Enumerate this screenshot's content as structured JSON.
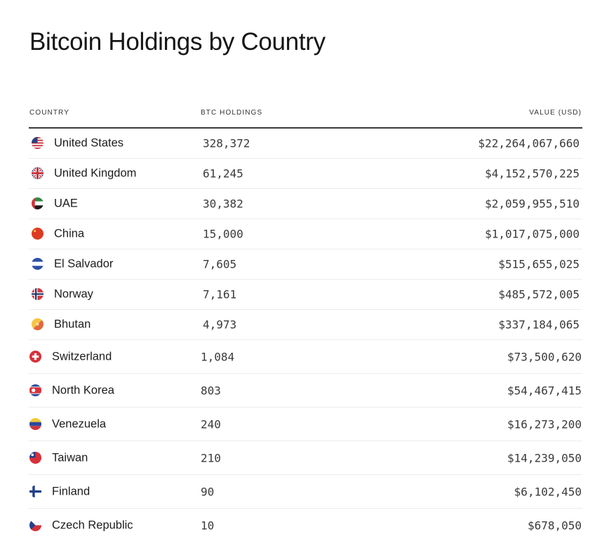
{
  "title": "Bitcoin Holdings by Country",
  "columns": {
    "country": "COUNTRY",
    "btc": "BTC HOLDINGS",
    "value": "VALUE (USD)"
  },
  "rows": [
    {
      "country": "United States",
      "btc": "328,372",
      "value": "$22,264,067,660",
      "flag": "us-flag-icon"
    },
    {
      "country": "United Kingdom",
      "btc": "61,245",
      "value": "$4,152,570,225",
      "flag": "uk-flag-icon"
    },
    {
      "country": "UAE",
      "btc": "30,382",
      "value": "$2,059,955,510",
      "flag": "uae-flag-icon"
    },
    {
      "country": "China",
      "btc": "15,000",
      "value": "$1,017,075,000",
      "flag": "china-flag-icon"
    },
    {
      "country": "El Salvador",
      "btc": "7,605",
      "value": "$515,655,025",
      "flag": "el-salvador-flag-icon"
    },
    {
      "country": "Norway",
      "btc": "7,161",
      "value": "$485,572,005",
      "flag": "norway-flag-icon"
    },
    {
      "country": "Bhutan",
      "btc": "4,973",
      "value": "$337,184,065",
      "flag": "bhutan-flag-icon"
    },
    {
      "country": "Switzerland",
      "btc": "1,084",
      "value": "$73,500,620",
      "flag": "switzerland-flag-icon"
    },
    {
      "country": "North Korea",
      "btc": "803",
      "value": "$54,467,415",
      "flag": "north-korea-flag-icon"
    },
    {
      "country": "Venezuela",
      "btc": "240",
      "value": "$16,273,200",
      "flag": "venezuela-flag-icon"
    },
    {
      "country": "Taiwan",
      "btc": "210",
      "value": "$14,239,050",
      "flag": "taiwan-flag-icon"
    },
    {
      "country": "Finland",
      "btc": "90",
      "value": "$6,102,450",
      "flag": "finland-flag-icon"
    },
    {
      "country": "Czech Republic",
      "btc": "10",
      "value": "$678,050",
      "flag": "czech-flag-icon"
    }
  ]
}
